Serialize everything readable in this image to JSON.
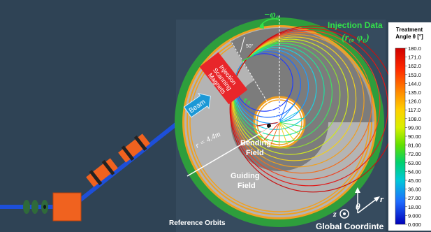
{
  "labels": {
    "injection_data": "Injection Data",
    "injection_params": "(r₀, φ₀)",
    "minus_phi0": "−φ₀",
    "angle_50": "50°",
    "r0": "r₀",
    "radius": "r = 4.4m",
    "bending_field_1": "Bending",
    "bending_field_2": "Field",
    "guiding_field_1": "Guiding",
    "guiding_field_2": "Field",
    "reference_orbits": "Reference Orbits",
    "global_coordinate": "Global Coordinte",
    "beam": "Beam",
    "scanning_magnets_1": "Injection",
    "scanning_magnets_2": "Scanning",
    "scanning_magnets_3": "Magnets",
    "axis_r": "r",
    "axis_theta": "θ",
    "axis_z": "z"
  },
  "colorbar": {
    "title_1": "Treatment",
    "title_2": "Angle θ [°]",
    "ticks": [
      "180.0",
      "171.0",
      "162.0",
      "153.0",
      "144.0",
      "135.0",
      "126.0",
      "117.0",
      "108.0",
      "99.00",
      "90.00",
      "81.00",
      "72.00",
      "63.00",
      "54.00",
      "45.00",
      "36.00",
      "27.00",
      "18.00",
      "9.000",
      "0.000"
    ]
  },
  "colors": {
    "background": "#2f4355",
    "outer_ring": "#2e9e3c",
    "orange_ring": "#f0a022",
    "guiding_field": "#b4b4b4",
    "bending_field": "#7c7c7c",
    "beamline": "#1d4fd9",
    "magnet": "#f0621f",
    "scanning_box": "#e8262a",
    "beam_arrow": "#1b98d6",
    "green_label": "#33e24a"
  }
}
